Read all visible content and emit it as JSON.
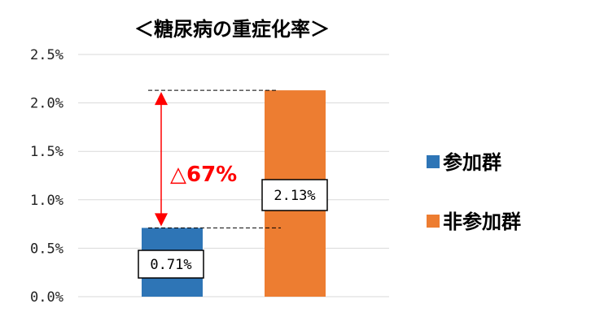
{
  "chart_data": {
    "type": "bar",
    "title": "＜糖尿病の重症化率＞",
    "categories": [
      "参加群",
      "非参加群"
    ],
    "values": [
      0.71,
      2.13
    ],
    "value_unit": "%",
    "data_labels": [
      "0.71%",
      "2.13%"
    ],
    "ylim": [
      0,
      2.5
    ],
    "yticks": [
      0.0,
      0.5,
      1.0,
      1.5,
      2.0,
      2.5
    ],
    "ytick_labels": [
      "0.0%",
      "0.5%",
      "1.0%",
      "1.5%",
      "2.0%",
      "2.5%"
    ],
    "grid": true,
    "legend_placement": "right",
    "legend": [
      {
        "label": "参加群",
        "color": "#2e75b6"
      },
      {
        "label": "非参加群",
        "color": "#ed7d31"
      }
    ],
    "annotation": "△67%"
  },
  "colors": {
    "grid": "#d9d9d9",
    "annotation": "#ff0000"
  }
}
